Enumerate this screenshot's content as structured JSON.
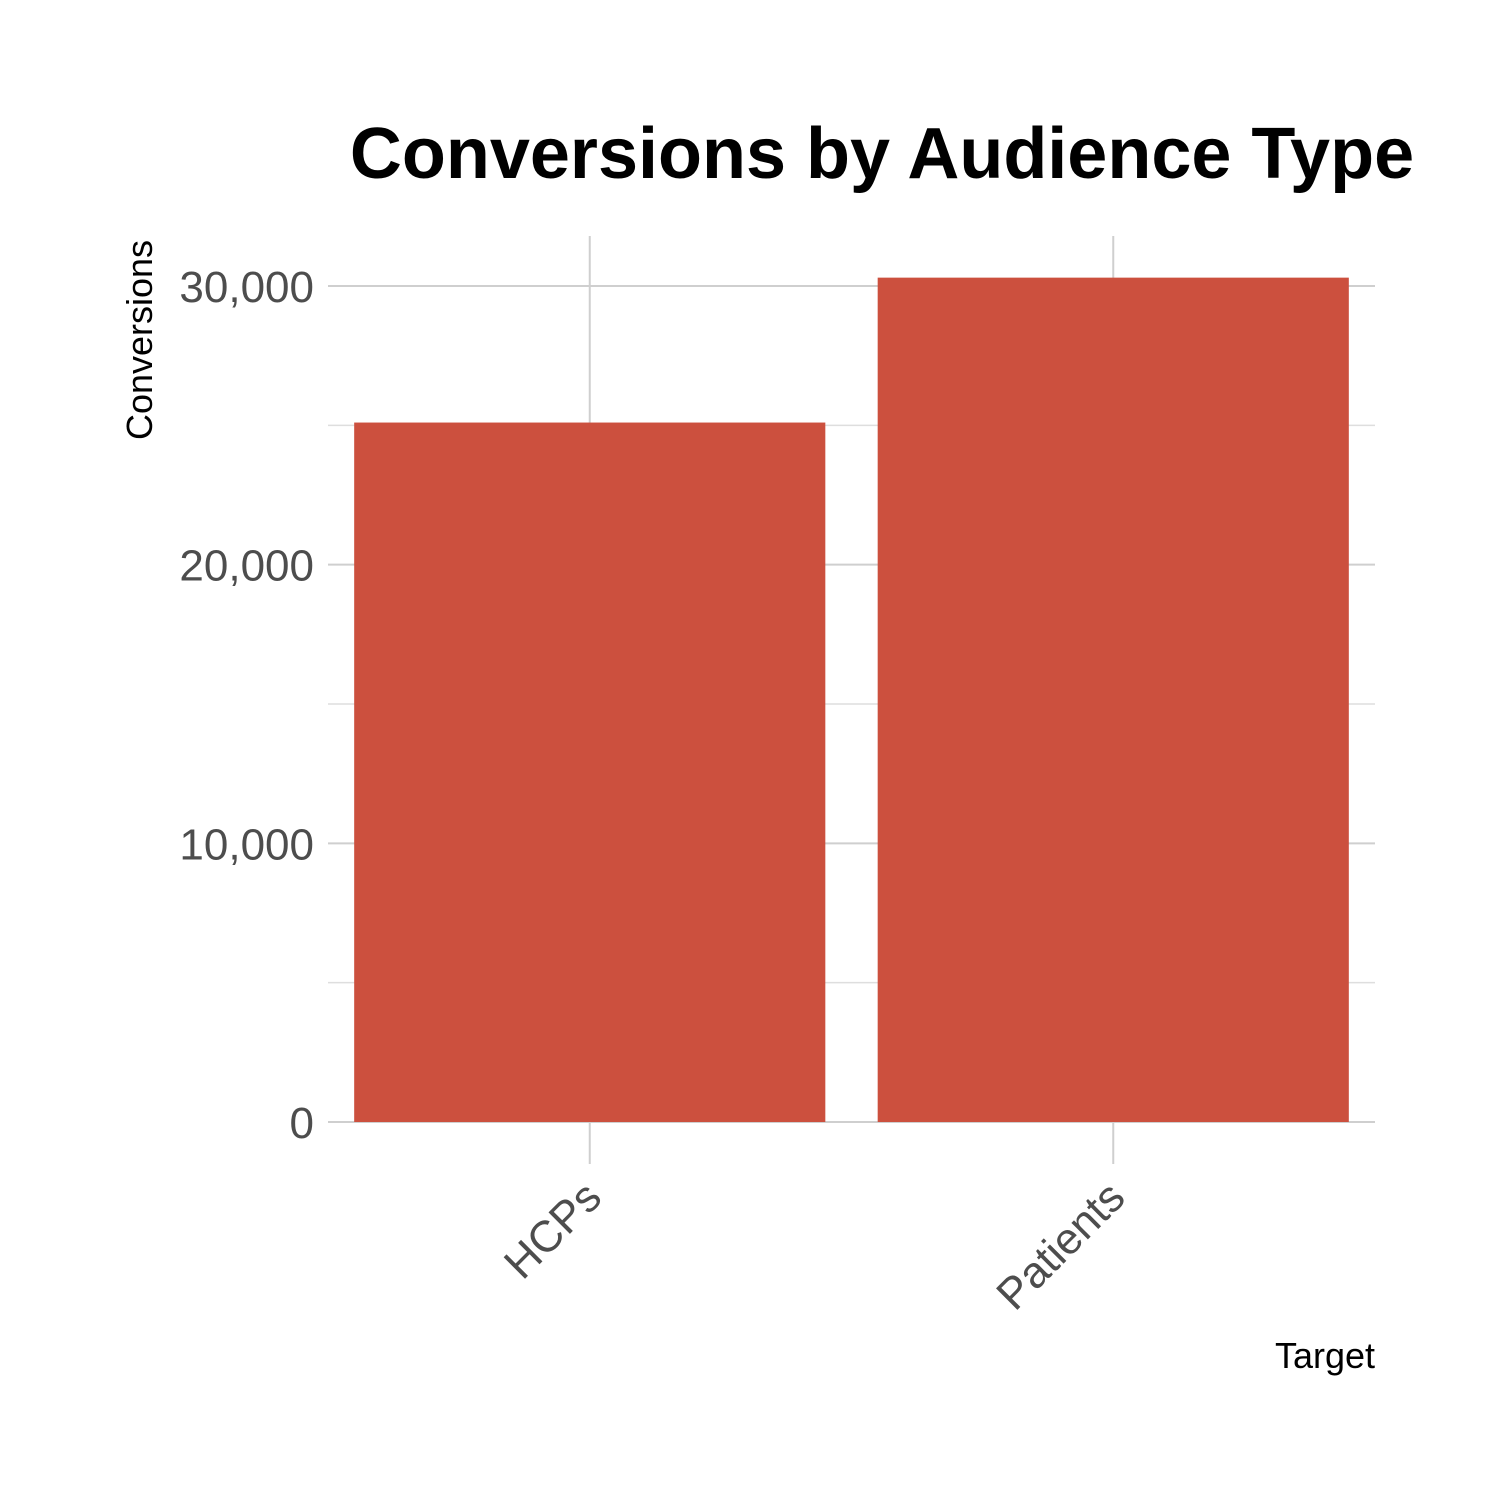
{
  "chart_data": {
    "type": "bar",
    "title": "Conversions by Audience Type",
    "xlabel": "Target",
    "ylabel": "Conversions",
    "categories": [
      "HCPs",
      "Patients"
    ],
    "values": [
      25100,
      30300
    ],
    "ylim": [
      0,
      32000
    ],
    "y_ticks": [
      0,
      10000,
      20000,
      30000
    ],
    "y_tick_labels": [
      "0",
      "10,000",
      "20,000",
      "30,000"
    ],
    "y_minor_ticks": [
      5000,
      15000,
      25000
    ],
    "bar_color": "#cc503e",
    "grid": true,
    "legend": "none"
  }
}
